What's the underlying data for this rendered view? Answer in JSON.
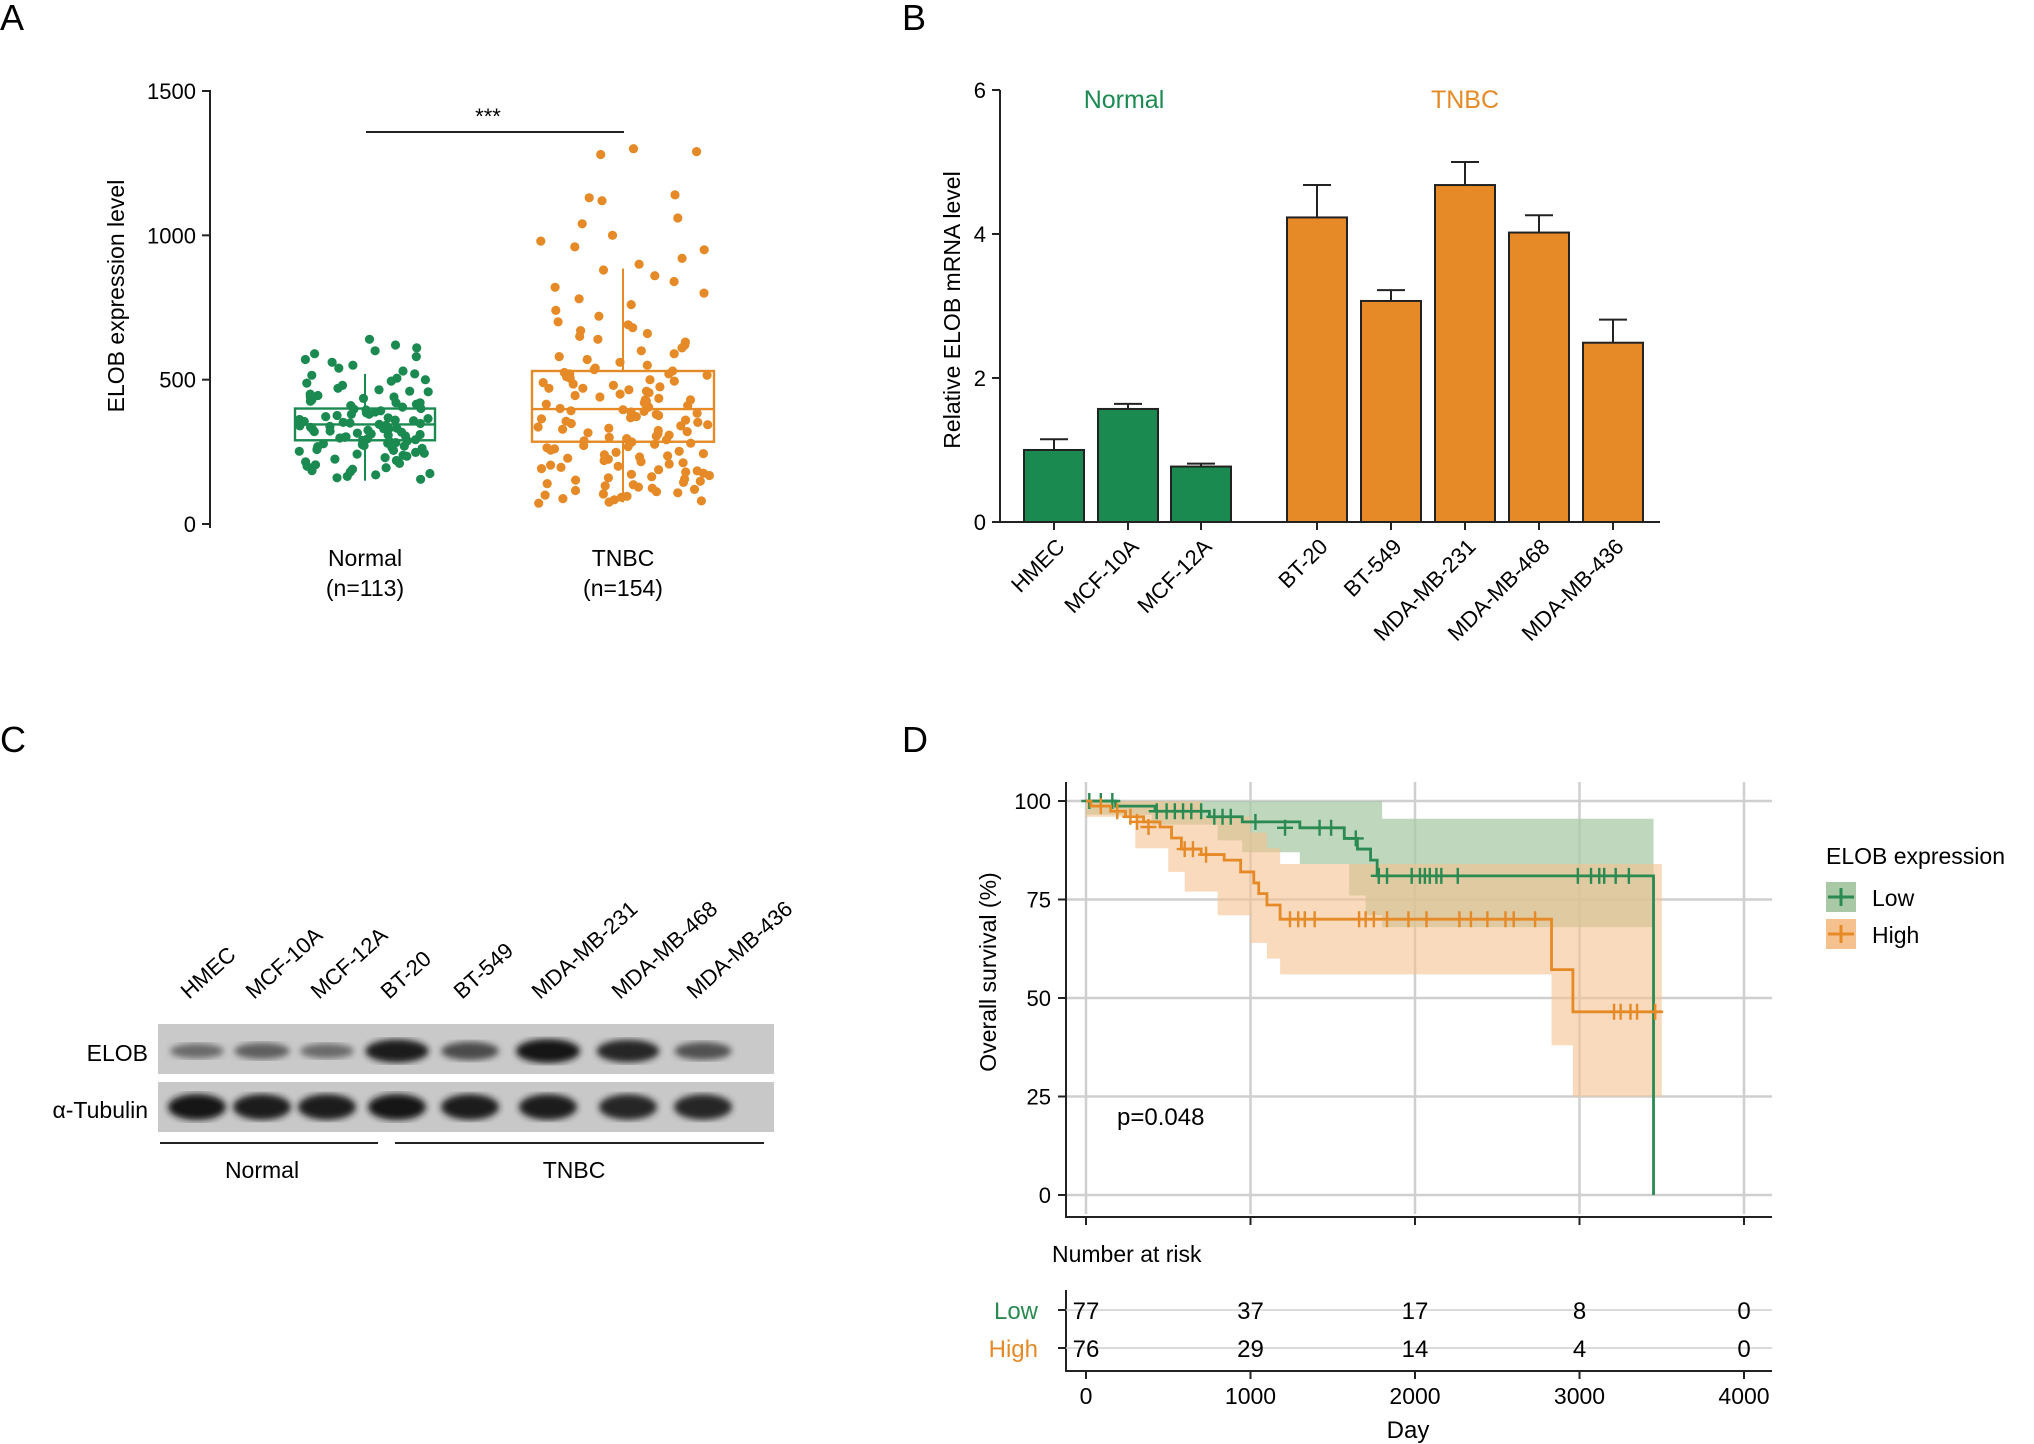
{
  "colors": {
    "normal": "#1b8a50",
    "tnbc": "#e58a26",
    "low": "#2a8a52",
    "high": "#e58a26",
    "low_band": "#a9c9a6",
    "high_band": "#f5c18f",
    "grid": "#cfcfcf",
    "axis": "#222222"
  },
  "chart_data": [
    {
      "panel": "A",
      "type": "scatter",
      "subtype": "box-with-jitter",
      "title": "",
      "xlabel": "",
      "ylabel": "ELOB expression level",
      "ylim": [
        0,
        1500
      ],
      "yticks": [
        0,
        500,
        1000,
        1500
      ],
      "categories": [
        "Normal",
        "TNBC"
      ],
      "category_counts": [
        "(n=113)",
        "(n=154)"
      ],
      "significance": "***",
      "boxes": [
        {
          "group": "Normal",
          "whisker_low": 150,
          "q1": 290,
          "median": 345,
          "q3": 400,
          "whisker_high": 520
        },
        {
          "group": "TNBC",
          "whisker_low": 75,
          "q1": 285,
          "median": 398,
          "q3": 530,
          "whisker_high": 885
        }
      ],
      "points": {
        "Normal": [
          620,
          600,
          610,
          640,
          590,
          580,
          560,
          570,
          550,
          540,
          530,
          520,
          515,
          505,
          495,
          488,
          480,
          470,
          465,
          458,
          450,
          445,
          440,
          435,
          430,
          425,
          420,
          415,
          410,
          405,
          400,
          398,
          395,
          392,
          388,
          385,
          380,
          376,
          372,
          368,
          365,
          362,
          358,
          355,
          352,
          350,
          348,
          345,
          342,
          340,
          338,
          335,
          332,
          330,
          328,
          325,
          322,
          320,
          318,
          315,
          312,
          310,
          308,
          305,
          302,
          300,
          298,
          295,
          292,
          290,
          288,
          285,
          282,
          280,
          278,
          275,
          272,
          270,
          268,
          265,
          262,
          258,
          255,
          252,
          248,
          245,
          242,
          238,
          235,
          230,
          225,
          220,
          215,
          210,
          205,
          200,
          195,
          190,
          185,
          180,
          175,
          170,
          165,
          160,
          155,
          350,
          360,
          380,
          420,
          440,
          460,
          500,
          330
        ],
        "TNBC": [
          1300,
          1290,
          1280,
          1140,
          1130,
          1120,
          1060,
          1040,
          1000,
          980,
          960,
          950,
          920,
          900,
          880,
          860,
          840,
          820,
          800,
          780,
          760,
          740,
          720,
          700,
          690,
          680,
          670,
          660,
          650,
          640,
          630,
          620,
          610,
          600,
          590,
          580,
          570,
          560,
          550,
          540,
          535,
          530,
          525,
          520,
          515,
          510,
          505,
          500,
          495,
          490,
          485,
          480,
          475,
          470,
          465,
          460,
          455,
          450,
          445,
          440,
          435,
          430,
          425,
          420,
          415,
          410,
          405,
          400,
          396,
          392,
          388,
          384,
          380,
          376,
          372,
          368,
          364,
          360,
          356,
          352,
          348,
          344,
          340,
          336,
          332,
          328,
          324,
          320,
          316,
          312,
          308,
          304,
          300,
          296,
          292,
          288,
          284,
          280,
          276,
          272,
          268,
          264,
          260,
          256,
          252,
          248,
          244,
          240,
          236,
          232,
          228,
          224,
          220,
          216,
          212,
          208,
          204,
          200,
          196,
          192,
          188,
          184,
          180,
          176,
          172,
          168,
          164,
          160,
          156,
          152,
          148,
          144,
          140,
          136,
          132,
          128,
          124,
          120,
          116,
          112,
          108,
          104,
          100,
          96,
          92,
          88,
          84,
          80,
          76,
          72,
          520,
          470,
          430,
          390
        ]
      }
    },
    {
      "panel": "B",
      "type": "bar",
      "title": "",
      "xlabel": "",
      "ylabel": "Relative ELOB mRNA level",
      "ylim": [
        0,
        6
      ],
      "yticks": [
        0,
        2,
        4,
        6
      ],
      "group_labels": [
        "Normal",
        "TNBC"
      ],
      "categories": [
        "HMEC",
        "MCF-10A",
        "MCF-12A",
        "BT-20",
        "BT-549",
        "MDA-MB-231",
        "MDA-MB-468",
        "MDA-MB-436"
      ],
      "groups": [
        "Normal",
        "Normal",
        "Normal",
        "TNBC",
        "TNBC",
        "TNBC",
        "TNBC",
        "TNBC"
      ],
      "values": [
        1.0,
        1.57,
        0.77,
        4.23,
        3.07,
        4.68,
        4.02,
        2.49
      ],
      "errors": [
        0.15,
        0.07,
        0.04,
        0.45,
        0.15,
        0.32,
        0.24,
        0.32
      ]
    },
    {
      "panel": "D",
      "type": "line",
      "subtype": "kaplan-meier",
      "title": "",
      "xlabel": "Day",
      "ylabel": "Overall survival (%)",
      "xlim": [
        0,
        4000
      ],
      "ylim": [
        0,
        100
      ],
      "xticks": [
        0,
        1000,
        2000,
        3000,
        4000
      ],
      "yticks": [
        0,
        25,
        50,
        75,
        100
      ],
      "legend_title": "ELOB expression",
      "legend_position": "right",
      "p_value": "p=0.048",
      "series": [
        {
          "name": "Low",
          "steps": [
            [
              0,
              100
            ],
            [
              180,
              98.7
            ],
            [
              420,
              97.4
            ],
            [
              750,
              96
            ],
            [
              950,
              94.7
            ],
            [
              1300,
              93.2
            ],
            [
              1570,
              90.5
            ],
            [
              1650,
              87.8
            ],
            [
              1730,
              85
            ],
            [
              1770,
              81
            ],
            [
              3450,
              81
            ],
            [
              3450,
              0
            ]
          ],
          "censor": [
            [
              20,
              100
            ],
            [
              90,
              100
            ],
            [
              160,
              100
            ],
            [
              430,
              97.4
            ],
            [
              490,
              97.4
            ],
            [
              540,
              97.4
            ],
            [
              590,
              97.4
            ],
            [
              640,
              97.4
            ],
            [
              700,
              97.4
            ],
            [
              780,
              96
            ],
            [
              830,
              96
            ],
            [
              880,
              96
            ],
            [
              1030,
              94.7
            ],
            [
              1210,
              93.2
            ],
            [
              1420,
              93.2
            ],
            [
              1490,
              93.2
            ],
            [
              1640,
              90.5
            ],
            [
              1780,
              81
            ],
            [
              1830,
              81
            ],
            [
              1980,
              81
            ],
            [
              2030,
              81
            ],
            [
              2060,
              81
            ],
            [
              2090,
              81
            ],
            [
              2130,
              81
            ],
            [
              2160,
              81
            ],
            [
              2260,
              81
            ],
            [
              2990,
              81
            ],
            [
              3070,
              81
            ],
            [
              3120,
              81
            ],
            [
              3150,
              81
            ],
            [
              3220,
              81
            ],
            [
              3300,
              81
            ]
          ],
          "band_upper": [
            [
              0,
              100
            ],
            [
              800,
              100
            ],
            [
              1800,
              95.5
            ],
            [
              3450,
              95.5
            ]
          ],
          "band_lower": [
            [
              0,
              96.5
            ],
            [
              400,
              94
            ],
            [
              800,
              90
            ],
            [
              950,
              87
            ],
            [
              1300,
              84
            ],
            [
              1600,
              76
            ],
            [
              1700,
              71
            ],
            [
              1800,
              68
            ],
            [
              3450,
              68
            ]
          ]
        },
        {
          "name": "High",
          "steps": [
            [
              0,
              100
            ],
            [
              30,
              98.7
            ],
            [
              150,
              97.4
            ],
            [
              240,
              96
            ],
            [
              350,
              94.7
            ],
            [
              450,
              93.4
            ],
            [
              520,
              90.6
            ],
            [
              580,
              87.8
            ],
            [
              700,
              86.4
            ],
            [
              840,
              85
            ],
            [
              940,
              82
            ],
            [
              1020,
              79.2
            ],
            [
              1050,
              76.5
            ],
            [
              1100,
              73.6
            ],
            [
              1180,
              70
            ],
            [
              2830,
              70
            ],
            [
              2830,
              57.2
            ],
            [
              2960,
              57.2
            ],
            [
              2960,
              46.5
            ],
            [
              3500,
              46.5
            ]
          ],
          "censor": [
            [
              90,
              98.7
            ],
            [
              190,
              97.4
            ],
            [
              270,
              96
            ],
            [
              310,
              94.7
            ],
            [
              380,
              93.4
            ],
            [
              600,
              87.8
            ],
            [
              650,
              87.8
            ],
            [
              730,
              86.4
            ],
            [
              1240,
              70
            ],
            [
              1290,
              70
            ],
            [
              1330,
              70
            ],
            [
              1390,
              70
            ],
            [
              1660,
              70
            ],
            [
              1700,
              70
            ],
            [
              1750,
              70
            ],
            [
              1830,
              70
            ],
            [
              1960,
              70
            ],
            [
              2070,
              70
            ],
            [
              2270,
              70
            ],
            [
              2340,
              70
            ],
            [
              2440,
              70
            ],
            [
              2550,
              70
            ],
            [
              2600,
              70
            ],
            [
              2730,
              70
            ],
            [
              3210,
              46.5
            ],
            [
              3250,
              46.5
            ],
            [
              3310,
              46.5
            ],
            [
              3350,
              46.5
            ],
            [
              3460,
              46.5
            ]
          ],
          "band_upper": [
            [
              0,
              100
            ],
            [
              500,
              100
            ],
            [
              700,
              96
            ],
            [
              1000,
              92
            ],
            [
              1100,
              88
            ],
            [
              1180,
              84
            ],
            [
              2830,
              84
            ],
            [
              2960,
              84
            ],
            [
              3500,
              84
            ]
          ],
          "band_lower": [
            [
              0,
              96
            ],
            [
              300,
              88
            ],
            [
              500,
              82
            ],
            [
              600,
              77
            ],
            [
              800,
              71
            ],
            [
              1000,
              64
            ],
            [
              1100,
              60
            ],
            [
              1180,
              56
            ],
            [
              2830,
              56
            ],
            [
              2830,
              38
            ],
            [
              2960,
              38
            ],
            [
              2960,
              25
            ],
            [
              3500,
              25
            ]
          ]
        }
      ],
      "risk_table": {
        "title": "Number at risk",
        "rows": [
          {
            "label": "Low",
            "values": [
              "77",
              "37",
              "17",
              "8",
              "0"
            ]
          },
          {
            "label": "High",
            "values": [
              "76",
              "29",
              "14",
              "4",
              "0"
            ]
          }
        ]
      }
    }
  ],
  "panel_labels": {
    "a": "A",
    "b": "B",
    "c": "C",
    "d": "D"
  },
  "western_blot": {
    "lanes": [
      "HMEC",
      "MCF-10A",
      "MCF-12A",
      "BT-20",
      "BT-549",
      "MDA-MB-231",
      "MDA-MB-468",
      "MDA-MB-436"
    ],
    "rows": [
      "ELOB",
      "α-Tubulin"
    ],
    "elob_intensity": [
      0.35,
      0.45,
      0.35,
      0.95,
      0.6,
      1.0,
      0.9,
      0.55
    ],
    "tubulin_intensity": [
      1.0,
      0.95,
      0.95,
      1.0,
      0.95,
      0.95,
      0.9,
      0.9
    ],
    "group_labels": [
      "Normal",
      "TNBC"
    ]
  }
}
